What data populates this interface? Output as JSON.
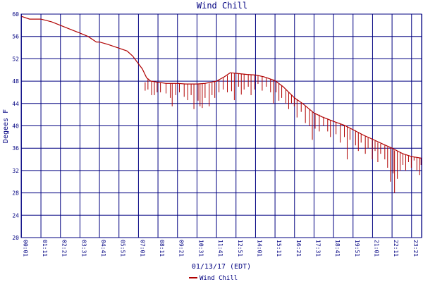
{
  "chart_data": {
    "type": "line",
    "title": "Wind Chill",
    "xlabel": "01/13/17 (EDT)",
    "ylabel": "Degees F",
    "ylim": [
      20,
      60
    ],
    "xlim_minutes": [
      0,
      1437
    ],
    "grid": true,
    "legend_position": "bottom-center",
    "colors": {
      "title": "#000080",
      "axis_text": "#000080",
      "grid": "#000080",
      "series": "#b00000"
    },
    "y_ticks": [
      "20",
      "24",
      "28",
      "32",
      "36",
      "40",
      "44",
      "48",
      "52",
      "56",
      "60"
    ],
    "x_ticks": [
      "00:01",
      "01:11",
      "02:21",
      "03:31",
      "04:41",
      "05:51",
      "07:01",
      "08:11",
      "09:21",
      "10:31",
      "11:41",
      "12:51",
      "14:01",
      "15:11",
      "16:21",
      "17:31",
      "18:41",
      "19:51",
      "21:01",
      "22:11",
      "23:21",
      "23:58"
    ],
    "series": [
      {
        "name": "Wind Chill",
        "x": [
          "00:01",
          "00:30",
          "01:11",
          "01:50",
          "02:21",
          "02:50",
          "03:31",
          "04:00",
          "04:30",
          "04:41",
          "05:10",
          "05:51",
          "06:20",
          "06:40",
          "07:01",
          "07:15",
          "07:30",
          "07:45",
          "08:11",
          "08:40",
          "09:21",
          "09:50",
          "10:31",
          "11:00",
          "11:41",
          "12:10",
          "12:30",
          "12:51",
          "13:30",
          "14:01",
          "14:30",
          "15:11",
          "15:40",
          "16:21",
          "16:50",
          "17:31",
          "18:00",
          "18:41",
          "19:20",
          "19:51",
          "20:30",
          "21:01",
          "21:40",
          "22:11",
          "22:50",
          "23:21",
          "23:58"
        ],
        "y": [
          59.6,
          59.1,
          59.1,
          58.6,
          58.0,
          57.4,
          56.6,
          56.0,
          55.0,
          55.0,
          54.6,
          53.9,
          53.4,
          52.5,
          51.1,
          50.2,
          48.6,
          48.0,
          47.8,
          47.6,
          47.6,
          47.5,
          47.5,
          47.6,
          48.0,
          48.8,
          49.5,
          49.4,
          49.2,
          49.1,
          48.8,
          48.1,
          47.0,
          45.0,
          44.0,
          42.3,
          41.6,
          40.8,
          40.1,
          39.3,
          38.3,
          37.6,
          36.7,
          36.0,
          35.0,
          34.5,
          34.2
        ],
        "dips": [
          [
            "07:25",
            47.8,
            46.3
          ],
          [
            "07:35",
            48.5,
            46.5
          ],
          [
            "07:48",
            47.9,
            45.5
          ],
          [
            "07:58",
            47.8,
            45.5
          ],
          [
            "08:08",
            47.8,
            46.0
          ],
          [
            "08:20",
            47.7,
            46.0
          ],
          [
            "08:40",
            47.6,
            45.8
          ],
          [
            "08:55",
            47.6,
            45.0
          ],
          [
            "09:02",
            47.6,
            43.5
          ],
          [
            "09:15",
            47.6,
            45.5
          ],
          [
            "09:28",
            47.6,
            46.0
          ],
          [
            "09:45",
            47.5,
            45.2
          ],
          [
            "09:58",
            47.5,
            44.6
          ],
          [
            "10:10",
            47.5,
            45.5
          ],
          [
            "10:20",
            47.5,
            43.0
          ],
          [
            "10:35",
            47.5,
            44.5
          ],
          [
            "10:42",
            47.5,
            43.5
          ],
          [
            "10:50",
            47.5,
            43.2
          ],
          [
            "11:00",
            47.6,
            45.0
          ],
          [
            "11:15",
            47.6,
            43.5
          ],
          [
            "11:25",
            47.7,
            45.5
          ],
          [
            "11:35",
            47.9,
            45.0
          ],
          [
            "11:50",
            48.2,
            46.0
          ],
          [
            "12:05",
            48.6,
            46.5
          ],
          [
            "12:20",
            49.0,
            46.0
          ],
          [
            "12:35",
            49.5,
            46.2
          ],
          [
            "12:45",
            49.4,
            44.6
          ],
          [
            "13:00",
            49.4,
            47.0
          ],
          [
            "13:10",
            49.3,
            45.6
          ],
          [
            "13:20",
            49.3,
            46.5
          ],
          [
            "13:35",
            49.2,
            47.0
          ],
          [
            "13:45",
            49.2,
            45.5
          ],
          [
            "13:58",
            49.1,
            46.5
          ],
          [
            "14:10",
            49.0,
            47.5
          ],
          [
            "14:25",
            48.8,
            46.3
          ],
          [
            "14:40",
            48.6,
            47.0
          ],
          [
            "14:55",
            48.4,
            46.0
          ],
          [
            "15:05",
            48.2,
            44.0
          ],
          [
            "15:15",
            48.0,
            46.0
          ],
          [
            "15:25",
            47.6,
            44.5
          ],
          [
            "15:35",
            47.2,
            45.0
          ],
          [
            "15:50",
            46.5,
            44.0
          ],
          [
            "16:00",
            46.0,
            43.0
          ],
          [
            "16:10",
            45.6,
            44.0
          ],
          [
            "16:20",
            45.1,
            43.5
          ],
          [
            "16:30",
            44.8,
            41.5
          ],
          [
            "16:45",
            44.2,
            42.5
          ],
          [
            "17:00",
            43.6,
            40.5
          ],
          [
            "17:15",
            43.0,
            40.0
          ],
          [
            "17:25",
            42.6,
            37.5
          ],
          [
            "17:35",
            42.3,
            39.5
          ],
          [
            "17:50",
            42.0,
            39.0
          ],
          [
            "18:05",
            41.6,
            40.0
          ],
          [
            "18:20",
            41.3,
            39.0
          ],
          [
            "18:30",
            41.0,
            38.0
          ],
          [
            "18:50",
            40.7,
            38.5
          ],
          [
            "19:05",
            40.4,
            37.0
          ],
          [
            "19:20",
            40.1,
            38.0
          ],
          [
            "19:30",
            39.8,
            34.0
          ],
          [
            "19:40",
            39.5,
            37.5
          ],
          [
            "20:00",
            39.2,
            36.5
          ],
          [
            "20:10",
            38.9,
            35.5
          ],
          [
            "20:20",
            38.6,
            37.0
          ],
          [
            "20:35",
            38.2,
            35.0
          ],
          [
            "20:45",
            37.9,
            36.0
          ],
          [
            "21:00",
            37.6,
            34.0
          ],
          [
            "21:10",
            37.3,
            35.5
          ],
          [
            "21:20",
            37.0,
            33.5
          ],
          [
            "21:30",
            36.8,
            35.0
          ],
          [
            "21:45",
            36.5,
            34.0
          ],
          [
            "21:55",
            36.2,
            32.5
          ],
          [
            "22:05",
            36.0,
            30.0
          ],
          [
            "22:15",
            35.8,
            31.5
          ],
          [
            "22:20",
            35.6,
            28.0
          ],
          [
            "22:30",
            35.4,
            30.5
          ],
          [
            "22:40",
            35.2,
            32.0
          ],
          [
            "22:50",
            35.0,
            33.0
          ],
          [
            "23:00",
            34.8,
            32.0
          ],
          [
            "23:10",
            34.6,
            33.5
          ],
          [
            "23:20",
            34.5,
            32.5
          ],
          [
            "23:30",
            34.4,
            33.8
          ],
          [
            "23:40",
            34.3,
            32.0
          ],
          [
            "23:50",
            34.2,
            31.2
          ],
          [
            "23:55",
            34.2,
            33.0
          ]
        ]
      }
    ]
  }
}
